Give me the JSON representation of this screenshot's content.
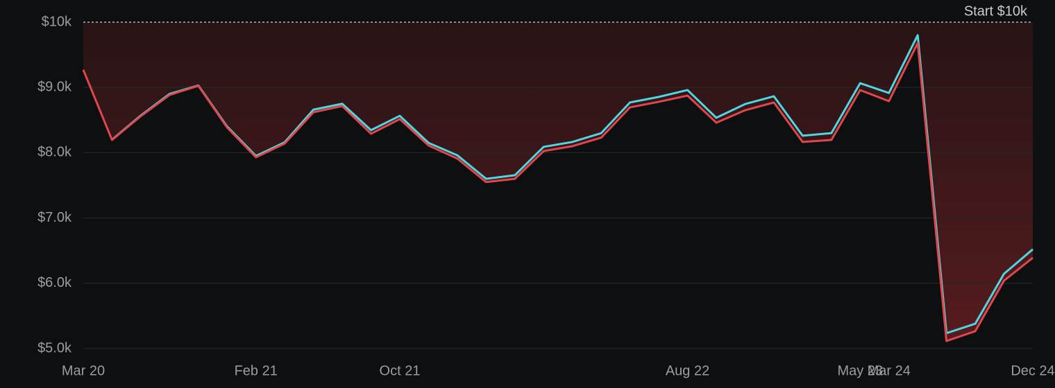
{
  "chart_data": {
    "type": "line",
    "categories": [
      "Mar 20",
      null,
      null,
      null,
      null,
      null,
      "Feb 21",
      null,
      null,
      null,
      null,
      "Oct 21",
      null,
      null,
      null,
      null,
      null,
      null,
      null,
      null,
      null,
      "Aug 22",
      null,
      null,
      null,
      null,
      null,
      "May 23",
      "Mar 24",
      null,
      null,
      null,
      null,
      "Dec 24"
    ],
    "series": [
      {
        "color": "#e0474c",
        "values": [
          9270,
          8195,
          8560,
          8885,
          9025,
          8385,
          7930,
          8140,
          8620,
          8715,
          8290,
          8515,
          8110,
          7910,
          7550,
          7600,
          8025,
          8100,
          8230,
          8695,
          8780,
          8875,
          8460,
          8650,
          8770,
          8165,
          8195,
          8960,
          8790,
          9680,
          5115,
          5265,
          6040,
          6390
        ]
      },
      {
        "color": "#4fd6e0",
        "values": [
          null,
          8200,
          8570,
          8900,
          9030,
          8400,
          7950,
          8160,
          8660,
          8750,
          8345,
          8565,
          8150,
          7960,
          7600,
          7655,
          8090,
          8165,
          8300,
          8770,
          8855,
          8960,
          8535,
          8745,
          8865,
          8260,
          8300,
          9065,
          8915,
          9800,
          5235,
          5380,
          6145,
          6520
        ]
      }
    ],
    "ylim": [
      5000,
      10000
    ],
    "yticks": [
      {
        "value": 5000,
        "label": "$5.0k"
      },
      {
        "value": 6000,
        "label": "$6.0k"
      },
      {
        "value": 7000,
        "label": "$7.0k"
      },
      {
        "value": 8000,
        "label": "$8.0k"
      },
      {
        "value": 9000,
        "label": "$9.0k"
      },
      {
        "value": 10000,
        "label": "$10k"
      }
    ],
    "grid": true,
    "baseline": 10000,
    "baseline_label": "Start $10k"
  }
}
